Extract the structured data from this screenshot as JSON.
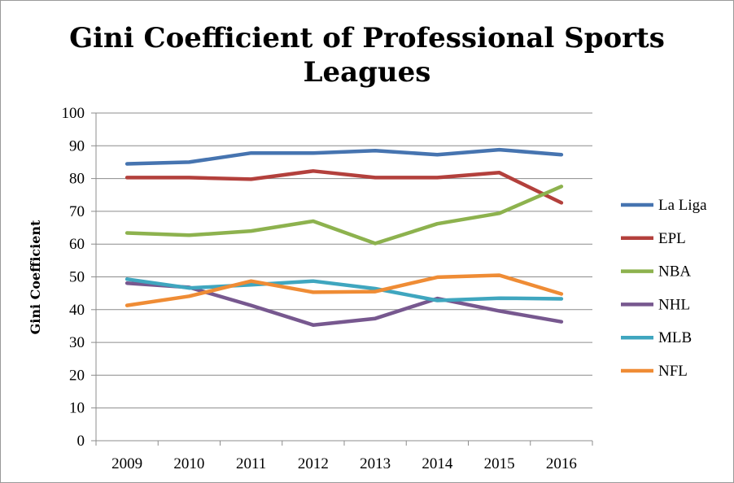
{
  "chart_data": {
    "type": "line",
    "title": "Gini Coefficient of Professional Sports Leagues",
    "title_lines": [
      "Gini Coefficient of Professional Sports",
      "Leagues"
    ],
    "xlabel": "",
    "ylabel": "Gini Coefficient",
    "categories": [
      "2009",
      "2010",
      "2011",
      "2012",
      "2013",
      "2014",
      "2015",
      "2016"
    ],
    "ylim": [
      0,
      100
    ],
    "yticks": [
      0,
      10,
      20,
      30,
      40,
      50,
      60,
      70,
      80,
      90,
      100
    ],
    "grid": true,
    "legend_position": "right",
    "series": [
      {
        "name": "La Liga",
        "color": "#4674b0",
        "values": [
          84.5,
          85,
          87.8,
          87.8,
          88.5,
          87.3,
          88.8,
          87.3
        ]
      },
      {
        "name": "EPL",
        "color": "#b3403c",
        "values": [
          80.3,
          80.3,
          79.8,
          82.3,
          80.3,
          80.3,
          81.8,
          72.6
        ]
      },
      {
        "name": "NBA",
        "color": "#8db24e",
        "values": [
          63.4,
          62.7,
          64,
          67,
          60.2,
          66.2,
          69.4,
          77.6
        ]
      },
      {
        "name": "NHL",
        "color": "#77588f",
        "values": [
          48.1,
          46.8,
          41.3,
          35.3,
          37.3,
          43.4,
          39.6,
          36.3
        ]
      },
      {
        "name": "MLB",
        "color": "#3fa6bf",
        "values": [
          49.3,
          46.6,
          47.6,
          48.7,
          46.4,
          42.8,
          43.5,
          43.3
        ]
      },
      {
        "name": "NFL",
        "color": "#ef8c35",
        "values": [
          41.3,
          44.1,
          48.7,
          45.3,
          45.5,
          49.9,
          50.5,
          44.8
        ]
      }
    ]
  }
}
